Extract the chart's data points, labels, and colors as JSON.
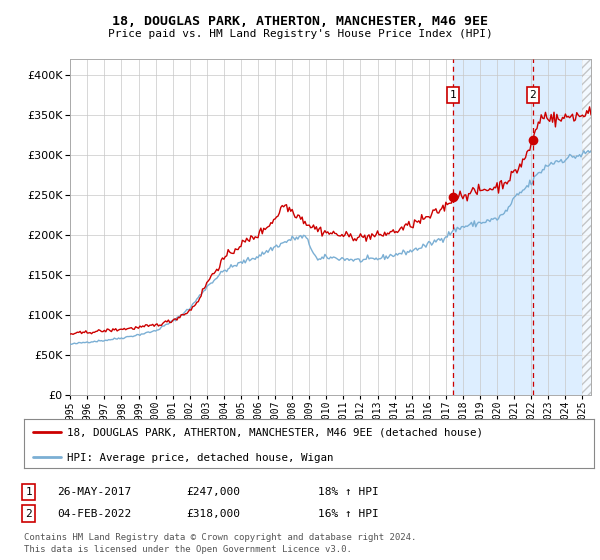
{
  "title": "18, DOUGLAS PARK, ATHERTON, MANCHESTER, M46 9EE",
  "subtitle": "Price paid vs. HM Land Registry's House Price Index (HPI)",
  "legend_line1": "18, DOUGLAS PARK, ATHERTON, MANCHESTER, M46 9EE (detached house)",
  "legend_line2": "HPI: Average price, detached house, Wigan",
  "footnote1": "Contains HM Land Registry data © Crown copyright and database right 2024.",
  "footnote2": "This data is licensed under the Open Government Licence v3.0.",
  "marker1_date": "26-MAY-2017",
  "marker1_price": 247000,
  "marker1_label": "18% ↑ HPI",
  "marker1_year": 2017.41,
  "marker2_date": "04-FEB-2022",
  "marker2_price": 318000,
  "marker2_label": "16% ↑ HPI",
  "marker2_year": 2022.09,
  "ylim": [
    0,
    420000
  ],
  "yticks": [
    0,
    50000,
    100000,
    150000,
    200000,
    250000,
    300000,
    350000,
    400000
  ],
  "xlim_start": 1995.0,
  "xlim_end": 2025.5,
  "hpi_color": "#7bafd4",
  "price_color": "#cc0000",
  "marker_color": "#cc0000",
  "bg_color": "#ffffff",
  "grid_color": "#c8c8c8",
  "highlight_color": "#ddeeff",
  "vline_color": "#cc0000",
  "box_color": "#cc0000",
  "hatch_start": 2025.0
}
